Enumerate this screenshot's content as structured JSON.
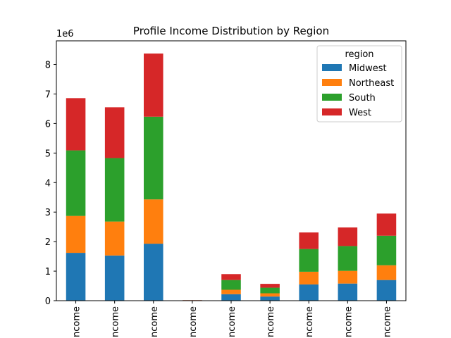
{
  "chart_data": {
    "type": "bar",
    "stacked": true,
    "title": "Profile Income Distribution by Region",
    "xlabel": "",
    "ylabel": "",
    "y_scale_label": "1e6",
    "ylim": [
      0,
      8800000
    ],
    "yticks": [
      0,
      1,
      2,
      3,
      4,
      5,
      6,
      7,
      8
    ],
    "categories": [
      "ncome",
      "ncome",
      "ncome",
      "ncome",
      "ncome",
      "ncome",
      "ncome",
      "ncome",
      "ncome"
    ],
    "legend_title": "region",
    "legend_position": "top-right",
    "grid": false,
    "series": [
      {
        "name": "Midwest",
        "color": "#1f77b4",
        "values": [
          1620000,
          1530000,
          1930000,
          5000,
          220000,
          140000,
          550000,
          580000,
          700000
        ]
      },
      {
        "name": "Northeast",
        "color": "#ff7f0e",
        "values": [
          1250000,
          1150000,
          1500000,
          3000,
          150000,
          110000,
          430000,
          430000,
          500000
        ]
      },
      {
        "name": "South",
        "color": "#2ca02c",
        "values": [
          2220000,
          2150000,
          2800000,
          7000,
          330000,
          190000,
          770000,
          840000,
          1000000
        ]
      },
      {
        "name": "West",
        "color": "#d62728",
        "values": [
          1770000,
          1720000,
          2140000,
          5000,
          200000,
          130000,
          560000,
          630000,
          750000
        ]
      }
    ]
  }
}
